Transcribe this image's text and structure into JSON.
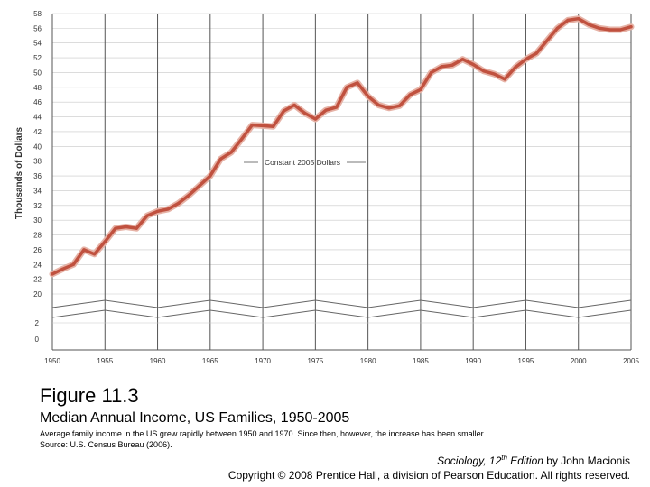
{
  "chart_data": {
    "type": "line",
    "ylabel": "Thousands of Dollars",
    "xlabel": "",
    "series": [
      {
        "name": "Constant 2005 Dollars",
        "x": [
          1950,
          1951,
          1952,
          1953,
          1954,
          1955,
          1956,
          1957,
          1958,
          1959,
          1960,
          1961,
          1962,
          1963,
          1964,
          1965,
          1966,
          1967,
          1968,
          1969,
          1970,
          1971,
          1972,
          1973,
          1974,
          1975,
          1976,
          1977,
          1978,
          1979,
          1980,
          1981,
          1982,
          1983,
          1984,
          1985,
          1986,
          1987,
          1988,
          1989,
          1990,
          1991,
          1992,
          1993,
          1994,
          1995,
          1996,
          1997,
          1998,
          1999,
          2000,
          2001,
          2002,
          2003,
          2004,
          2005
        ],
        "values": [
          22.7,
          23.4,
          24.0,
          26.0,
          25.4,
          27.1,
          28.9,
          29.1,
          28.9,
          30.6,
          31.2,
          31.5,
          32.3,
          33.4,
          34.7,
          36.0,
          38.3,
          39.2,
          41.0,
          42.9,
          42.8,
          42.7,
          44.8,
          45.6,
          44.5,
          43.7,
          44.9,
          45.3,
          48.0,
          48.6,
          46.8,
          45.6,
          45.2,
          45.5,
          47.0,
          47.7,
          50.0,
          50.8,
          51.0,
          51.8,
          51.1,
          50.2,
          49.8,
          49.1,
          50.7,
          51.8,
          52.6,
          54.3,
          56.0,
          57.1,
          57.3,
          56.5,
          56.0,
          55.8,
          55.8,
          56.2
        ]
      }
    ],
    "x_ticks": [
      "1950",
      "1955",
      "1960",
      "1965",
      "1970",
      "1975",
      "1980",
      "1985",
      "1990",
      "1995",
      "2000",
      "2005"
    ],
    "y_ticks_upper": [
      "20",
      "22",
      "24",
      "26",
      "28",
      "30",
      "32",
      "34",
      "36",
      "38",
      "40",
      "42",
      "44",
      "46",
      "48",
      "50",
      "52",
      "54",
      "56",
      "58"
    ],
    "y_ticks_lower": [
      "0",
      "2"
    ],
    "ylim": [
      20,
      58
    ],
    "xlim": [
      1950,
      2005
    ],
    "axis_break": "between 2 and 20",
    "grid": true,
    "line_color": "#c0513f",
    "annotation": "Constant 2005 Dollars"
  },
  "figure": {
    "number": "Figure 11.3",
    "title": "Median Annual Income, US Families, 1950-2005",
    "caption_line1": "Average family income in the US grew rapidly between 1950 and 1970. Since then, however, the increase has been smaller.",
    "caption_line2": "Source: U.S. Census Bureau (2006)."
  },
  "citation": {
    "book": "Sociology, 12",
    "edition_sup": "th",
    "edition_rest": " Edition",
    "author": " by John Macionis",
    "copyright": "Copyright © 2008 Prentice Hall, a division of Pearson Education. All rights reserved."
  }
}
